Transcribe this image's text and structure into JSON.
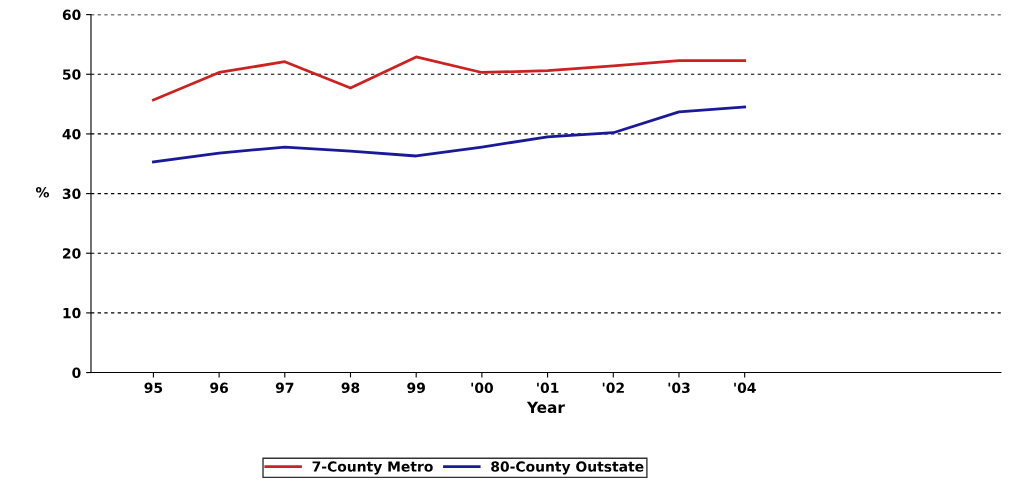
{
  "chart_data": {
    "type": "line",
    "xlabel": "Year",
    "ylabel": "%",
    "categories": [
      "95",
      "96",
      "97",
      "98",
      "99",
      "'00",
      "'01",
      "'02",
      "'03",
      "'04"
    ],
    "series": [
      {
        "name": "7-County Metro",
        "color": "#cc2222",
        "values": [
          45.7,
          50.3,
          52.1,
          47.7,
          52.9,
          50.3,
          50.6,
          51.4,
          52.3,
          52.3
        ]
      },
      {
        "name": "80-County Outstate",
        "color": "#1a1a99",
        "values": [
          35.3,
          36.8,
          37.8,
          37.1,
          36.3,
          37.8,
          39.5,
          40.2,
          43.7,
          44.5
        ]
      }
    ],
    "ylim": [
      0,
      60
    ],
    "yticks": [
      0,
      10,
      20,
      30,
      40,
      50,
      60
    ],
    "grid": "y",
    "legend": "bottom",
    "marker": "none",
    "line_style": "solid"
  }
}
